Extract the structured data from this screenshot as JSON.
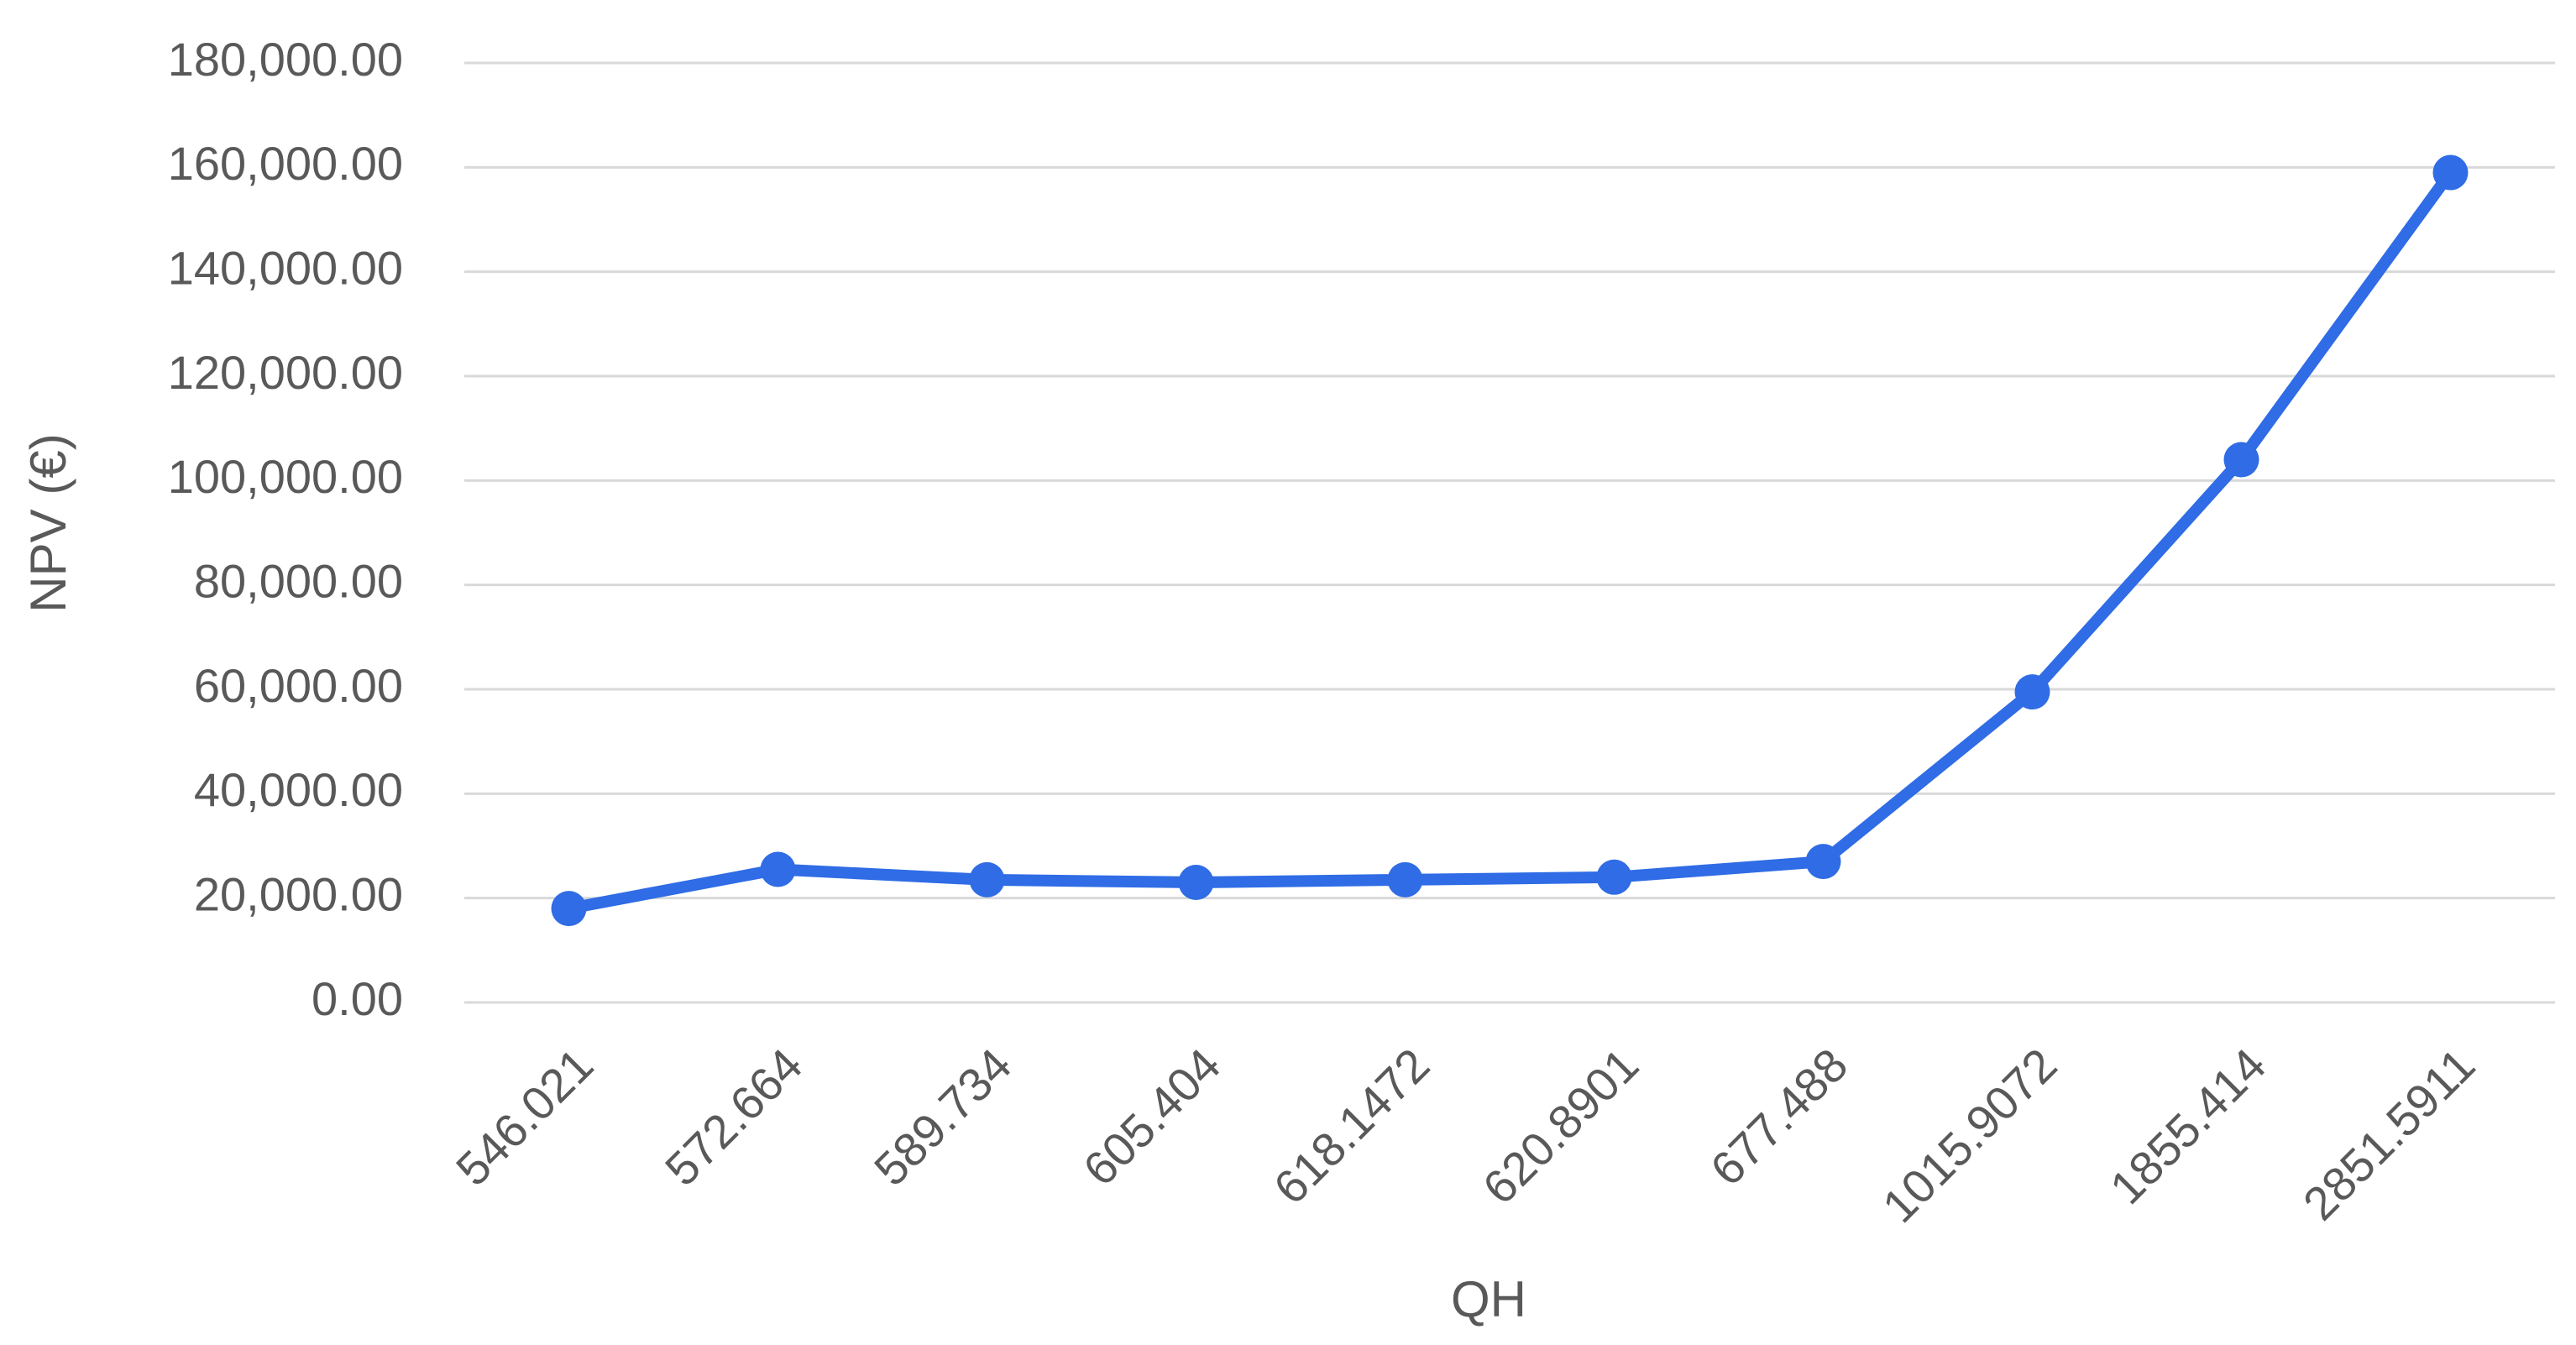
{
  "chart_data": {
    "type": "line",
    "x_label": "QH",
    "y_label": "NPV (€)",
    "categories": [
      "546.021",
      "572.664",
      "589.734",
      "605.404",
      "618.1472",
      "620.8901",
      "677.488",
      "1015.9072",
      "1855.414",
      "2851.5911"
    ],
    "series": [
      {
        "name": "NPV",
        "color": "#2f6ce5",
        "values": [
          18000,
          25500,
          23500,
          23000,
          23500,
          24000,
          27000,
          59500,
          104000,
          159000
        ]
      }
    ],
    "ylim": [
      0,
      180000
    ],
    "yticks": [
      {
        "value": 0,
        "label": "0.00"
      },
      {
        "value": 20000,
        "label": "20,000.00"
      },
      {
        "value": 40000,
        "label": "40,000.00"
      },
      {
        "value": 60000,
        "label": "60,000.00"
      },
      {
        "value": 80000,
        "label": "80,000.00"
      },
      {
        "value": 100000,
        "label": "100,000.00"
      },
      {
        "value": 120000,
        "label": "120,000.00"
      },
      {
        "value": 140000,
        "label": "140,000.00"
      },
      {
        "value": 160000,
        "label": "160,000.00"
      },
      {
        "value": 180000,
        "label": "180,000.00"
      }
    ],
    "grid": true
  }
}
